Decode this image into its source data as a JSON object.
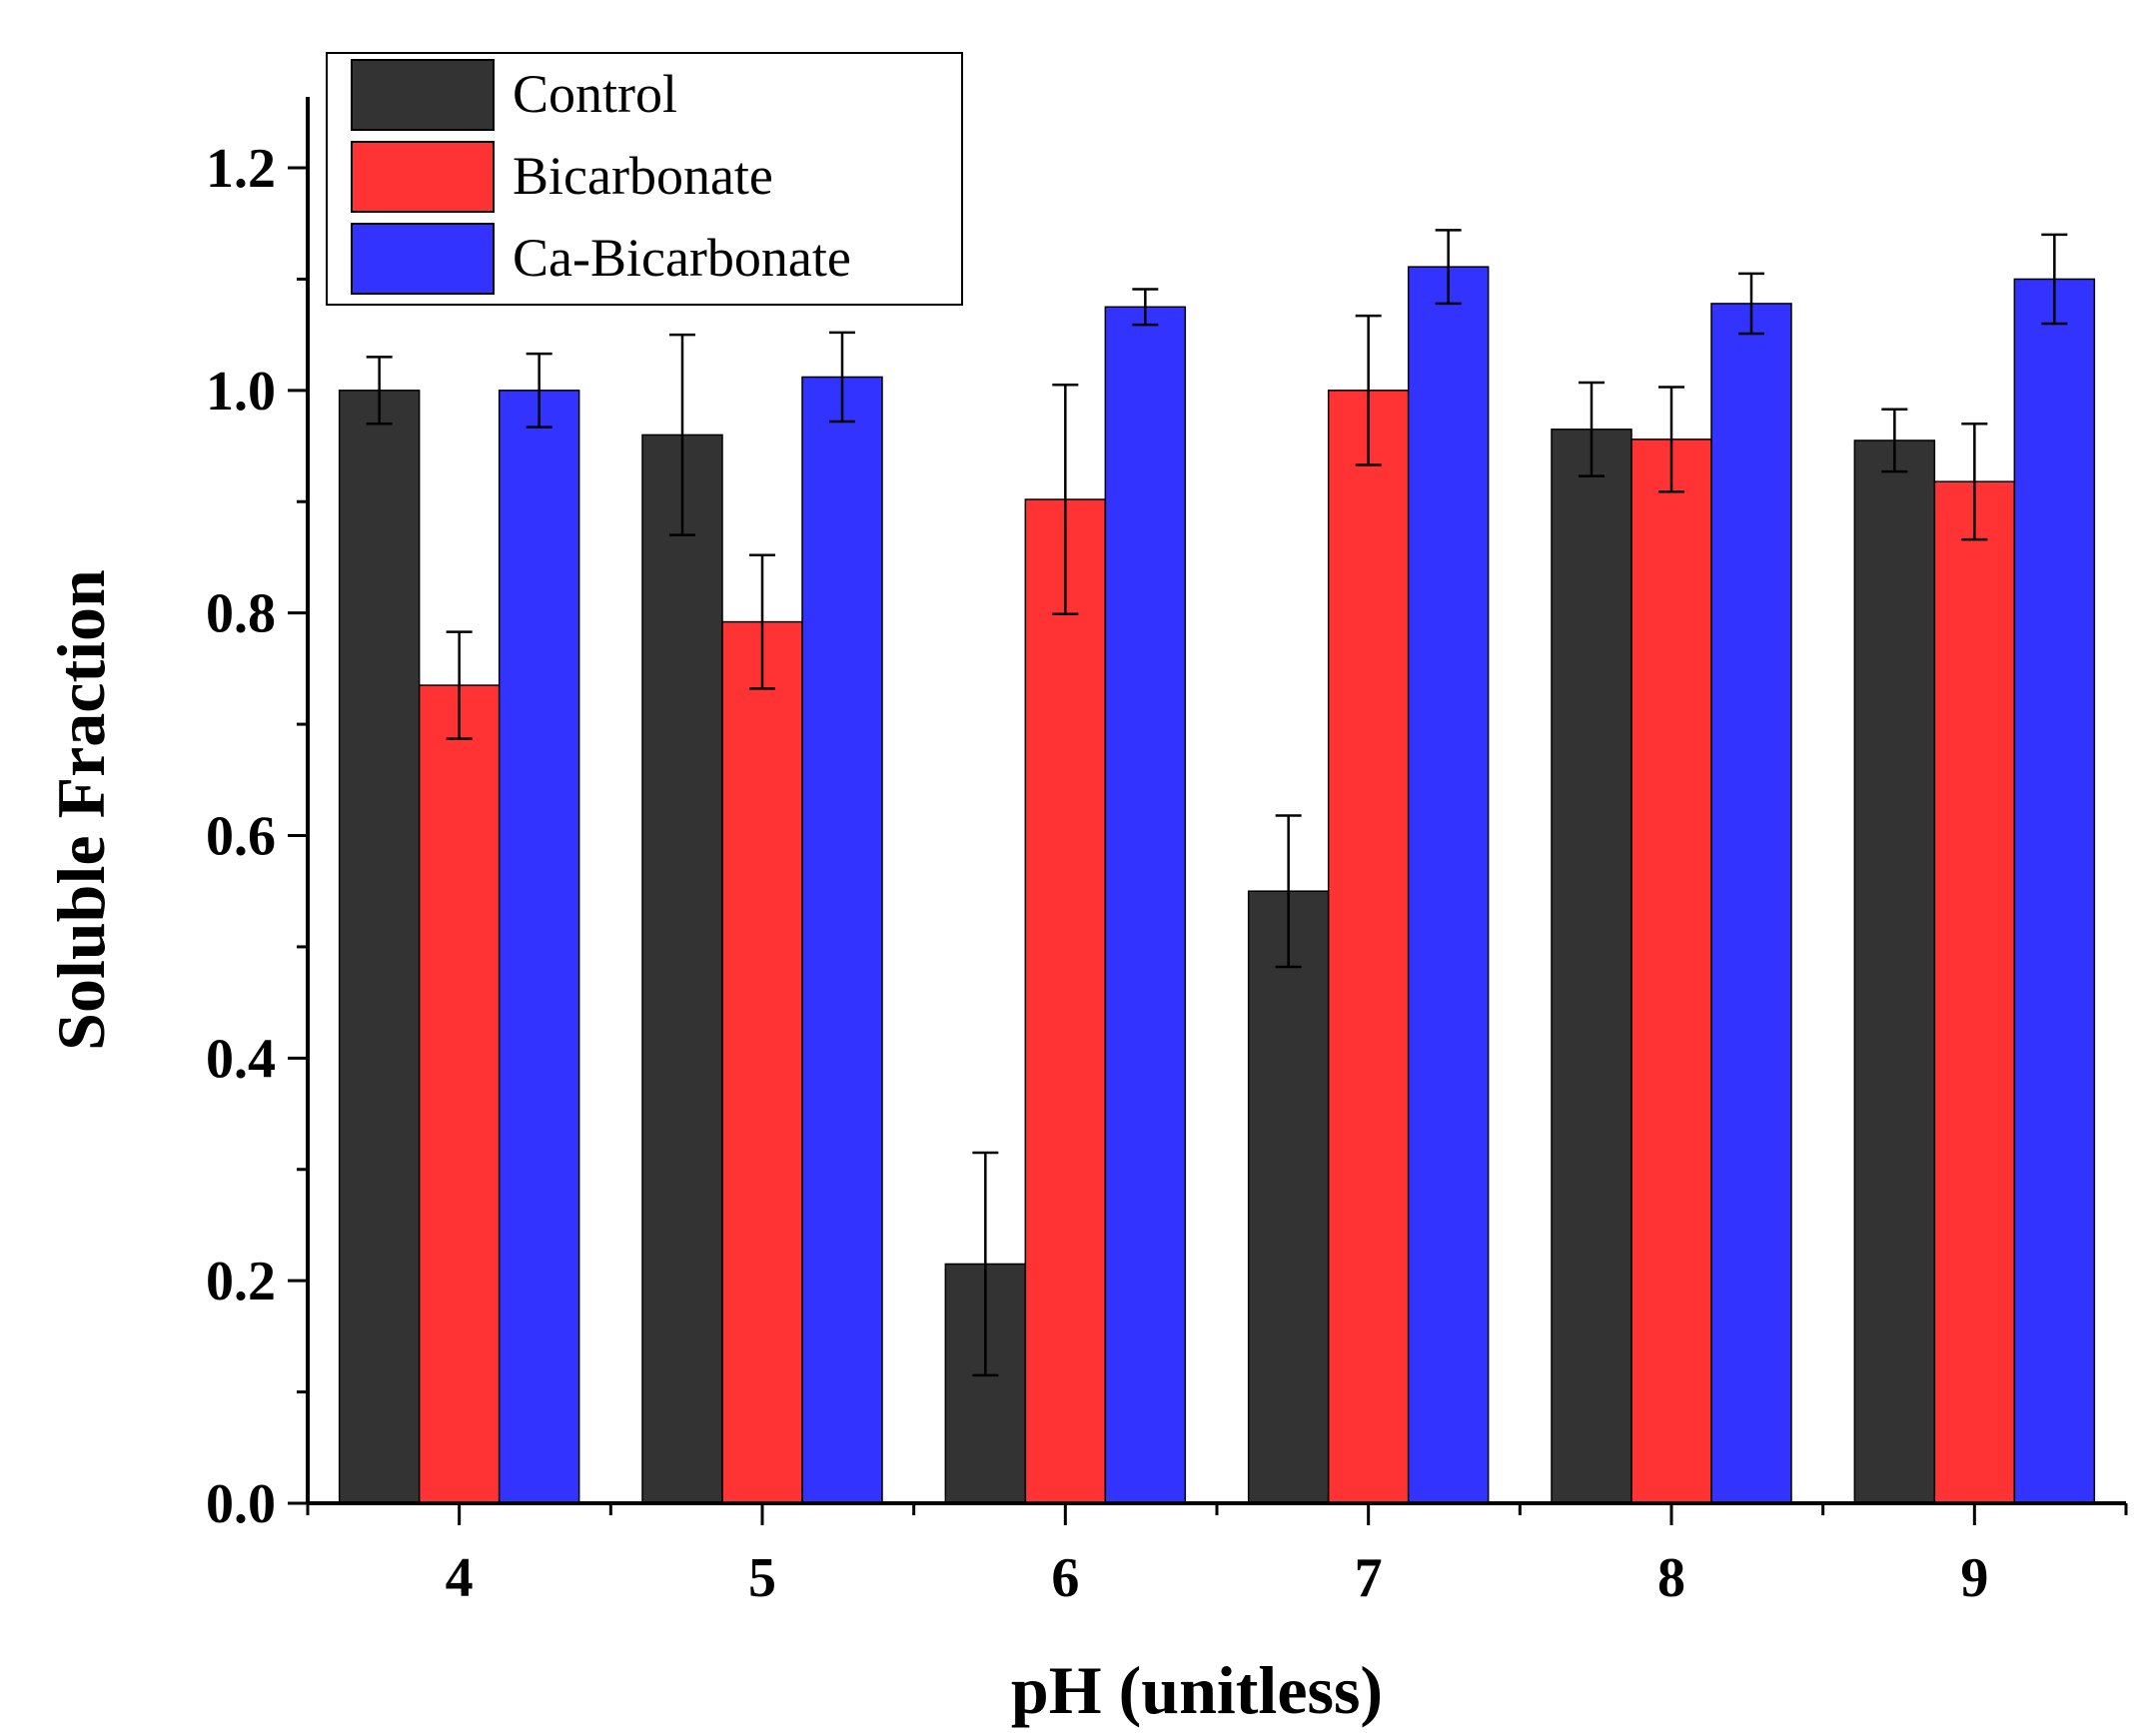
{
  "chart_data": {
    "type": "bar",
    "xlabel": "pH (unitless)",
    "ylabel": "Soluble Fraction",
    "categories": [
      "4",
      "5",
      "6",
      "7",
      "8",
      "9"
    ],
    "ylim": [
      0,
      1.2
    ],
    "yticks": [
      "0.0",
      "0.2",
      "0.4",
      "0.6",
      "0.8",
      "1.0",
      "1.2"
    ],
    "legend_position": "top-left",
    "error_bars": true,
    "series": [
      {
        "name": "Control",
        "color": "#333333",
        "values": [
          1.0,
          0.96,
          0.215,
          0.55,
          0.965,
          0.955
        ],
        "errors": [
          0.03,
          0.09,
          0.1,
          0.068,
          0.042,
          0.028
        ]
      },
      {
        "name": "Bicarbonate",
        "color": "#ff3333",
        "values": [
          0.735,
          0.792,
          0.902,
          1.0,
          0.956,
          0.918
        ],
        "errors": [
          0.048,
          0.06,
          0.103,
          0.067,
          0.047,
          0.052
        ]
      },
      {
        "name": "Ca-Bicarbonate",
        "color": "#3333ff",
        "values": [
          1.0,
          1.012,
          1.075,
          1.111,
          1.078,
          1.1
        ],
        "errors": [
          0.033,
          0.04,
          0.016,
          0.033,
          0.027,
          0.04
        ]
      }
    ]
  }
}
